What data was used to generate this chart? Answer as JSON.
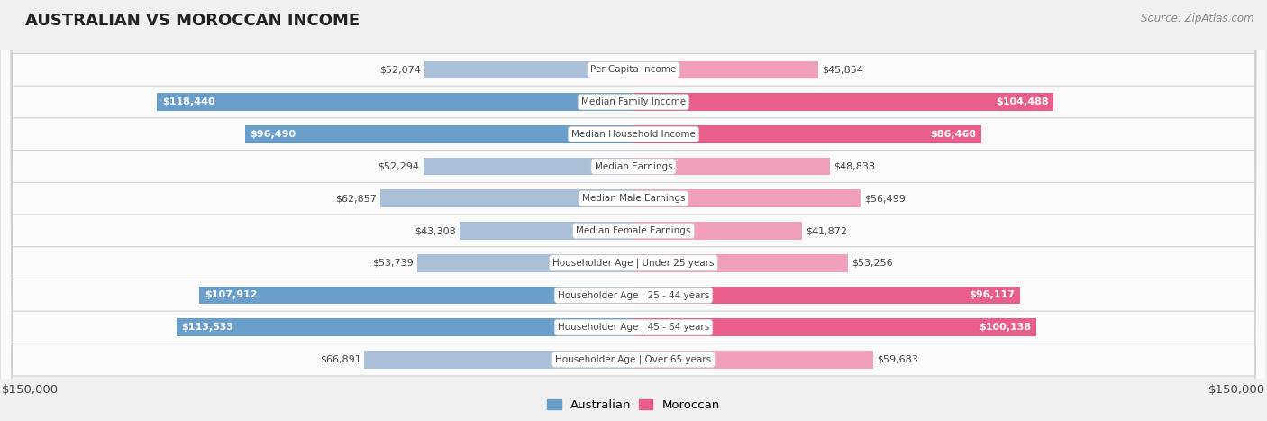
{
  "title": "AUSTRALIAN VS MOROCCAN INCOME",
  "source": "Source: ZipAtlas.com",
  "categories": [
    "Per Capita Income",
    "Median Family Income",
    "Median Household Income",
    "Median Earnings",
    "Median Male Earnings",
    "Median Female Earnings",
    "Householder Age | Under 25 years",
    "Householder Age | 25 - 44 years",
    "Householder Age | 45 - 64 years",
    "Householder Age | Over 65 years"
  ],
  "australian_values": [
    52074,
    118440,
    96490,
    52294,
    62857,
    43308,
    53739,
    107912,
    113533,
    66891
  ],
  "moroccan_values": [
    45854,
    104488,
    86468,
    48838,
    56499,
    41872,
    53256,
    96117,
    100138,
    59683
  ],
  "australian_labels": [
    "$52,074",
    "$118,440",
    "$96,490",
    "$52,294",
    "$62,857",
    "$43,308",
    "$53,739",
    "$107,912",
    "$113,533",
    "$66,891"
  ],
  "moroccan_labels": [
    "$45,854",
    "$104,488",
    "$86,468",
    "$48,838",
    "$56,499",
    "$41,872",
    "$53,256",
    "$96,117",
    "$100,138",
    "$59,683"
  ],
  "max_value": 150000,
  "australian_color_light": "#aabfd8",
  "moroccan_color_light": "#f0a0bc",
  "australian_color_dark": "#6a9fcc",
  "moroccan_color_dark": "#e8608a",
  "bg_color": "#f0f0f0",
  "row_bg_color": "#fafafa",
  "row_bg_alt": "#f0f0f0",
  "label_color_dark": "#444444",
  "label_color_white": "#ffffff",
  "threshold": 80000,
  "axis_label": "$150,000",
  "legend_australian": "Australian",
  "legend_moroccan": "Moroccan",
  "bar_height": 0.55
}
